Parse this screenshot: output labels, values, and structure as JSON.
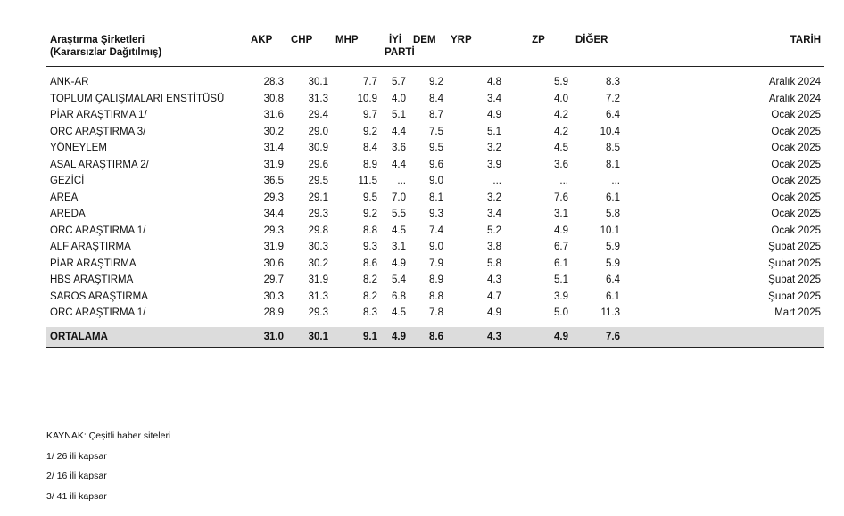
{
  "table": {
    "headers": {
      "company_line1": "Araştırma Şirketleri",
      "company_line2": "(Kararsızlar Dağıtılmış)",
      "akp": "AKP",
      "chp": "CHP",
      "mhp": "MHP",
      "iyi_line1": "İYİ",
      "iyi_line2": "PARTİ",
      "dem": "DEM",
      "yrp": "YRP",
      "zp": "ZP",
      "diger": "DİĞER",
      "tarih": "TARİH"
    },
    "rows": [
      {
        "company": "ANK-AR",
        "akp": "28.3",
        "chp": "30.1",
        "mhp": "7.7",
        "iyi": "5.7",
        "dem": "9.2",
        "yrp": "4.8",
        "zp": "5.9",
        "diger": "8.3",
        "tarih": "Aralık 2024"
      },
      {
        "company": "TOPLUM ÇALIŞMALARI ENSTİTÜSÜ",
        "akp": "30.8",
        "chp": "31.3",
        "mhp": "10.9",
        "iyi": "4.0",
        "dem": "8.4",
        "yrp": "3.4",
        "zp": "4.0",
        "diger": "7.2",
        "tarih": "Aralık 2024"
      },
      {
        "company": "PİAR ARAŞTIRMA 1/",
        "akp": "31.6",
        "chp": "29.4",
        "mhp": "9.7",
        "iyi": "5.1",
        "dem": "8.7",
        "yrp": "4.9",
        "zp": "4.2",
        "diger": "6.4",
        "tarih": "Ocak 2025"
      },
      {
        "company": "ORC ARAŞTIRMA 3/",
        "akp": "30.2",
        "chp": "29.0",
        "mhp": "9.2",
        "iyi": "4.4",
        "dem": "7.5",
        "yrp": "5.1",
        "zp": "4.2",
        "diger": "10.4",
        "tarih": "Ocak 2025"
      },
      {
        "company": "YÖNEYLEM",
        "akp": "31.4",
        "chp": "30.9",
        "mhp": "8.4",
        "iyi": "3.6",
        "dem": "9.5",
        "yrp": "3.2",
        "zp": "4.5",
        "diger": "8.5",
        "tarih": "Ocak 2025"
      },
      {
        "company": "ASAL ARAŞTIRMA 2/",
        "akp": "31.9",
        "chp": "29.6",
        "mhp": "8.9",
        "iyi": "4.4",
        "dem": "9.6",
        "yrp": "3.9",
        "zp": "3.6",
        "diger": "8.1",
        "tarih": "Ocak 2025"
      },
      {
        "company": "GEZİCİ",
        "akp": "36.5",
        "chp": "29.5",
        "mhp": "11.5",
        "iyi": "...",
        "dem": "9.0",
        "yrp": "...",
        "zp": "...",
        "diger": "...",
        "tarih": "Ocak 2025"
      },
      {
        "company": "AREA",
        "akp": "29.3",
        "chp": "29.1",
        "mhp": "9.5",
        "iyi": "7.0",
        "dem": "8.1",
        "yrp": "3.2",
        "zp": "7.6",
        "diger": "6.1",
        "tarih": "Ocak 2025"
      },
      {
        "company": "AREDA",
        "akp": "34.4",
        "chp": "29.3",
        "mhp": "9.2",
        "iyi": "5.5",
        "dem": "9.3",
        "yrp": "3.4",
        "zp": "3.1",
        "diger": "5.8",
        "tarih": "Ocak 2025"
      },
      {
        "company": "ORC ARAŞTIRMA 1/",
        "akp": "29.3",
        "chp": "29.8",
        "mhp": "8.8",
        "iyi": "4.5",
        "dem": "7.4",
        "yrp": "5.2",
        "zp": "4.9",
        "diger": "10.1",
        "tarih": "Ocak 2025"
      },
      {
        "company": "ALF ARAŞTIRMA",
        "akp": "31.9",
        "chp": "30.3",
        "mhp": "9.3",
        "iyi": "3.1",
        "dem": "9.0",
        "yrp": "3.8",
        "zp": "6.7",
        "diger": "5.9",
        "tarih": "Şubat 2025"
      },
      {
        "company": "PİAR ARAŞTIRMA",
        "akp": "30.6",
        "chp": "30.2",
        "mhp": "8.6",
        "iyi": "4.9",
        "dem": "7.9",
        "yrp": "5.8",
        "zp": "6.1",
        "diger": "5.9",
        "tarih": "Şubat 2025"
      },
      {
        "company": "HBS ARAŞTIRMA",
        "akp": "29.7",
        "chp": "31.9",
        "mhp": "8.2",
        "iyi": "5.4",
        "dem": "8.9",
        "yrp": "4.3",
        "zp": "5.1",
        "diger": "6.4",
        "tarih": "Şubat 2025"
      },
      {
        "company": "SAROS ARAŞTIRMA",
        "akp": "30.3",
        "chp": "31.3",
        "mhp": "8.2",
        "iyi": "6.8",
        "dem": "8.8",
        "yrp": "4.7",
        "zp": "3.9",
        "diger": "6.1",
        "tarih": "Şubat 2025"
      },
      {
        "company": "ORC ARAŞTIRMA 1/",
        "akp": "28.9",
        "chp": "29.3",
        "mhp": "8.3",
        "iyi": "4.5",
        "dem": "7.8",
        "yrp": "4.9",
        "zp": "5.0",
        "diger": "11.3",
        "tarih": "Mart 2025"
      }
    ],
    "average": {
      "company": "ORTALAMA",
      "akp": "31.0",
      "chp": "30.1",
      "mhp": "9.1",
      "iyi": "4.9",
      "dem": "8.6",
      "yrp": "4.3",
      "zp": "4.9",
      "diger": "7.6",
      "tarih": ""
    }
  },
  "notes": [
    "KAYNAK: Çeşitli haber siteleri",
    "1/ 26 ili kapsar",
    "2/ 16 ili kapsar",
    "3/ 41 ili kapsar"
  ]
}
